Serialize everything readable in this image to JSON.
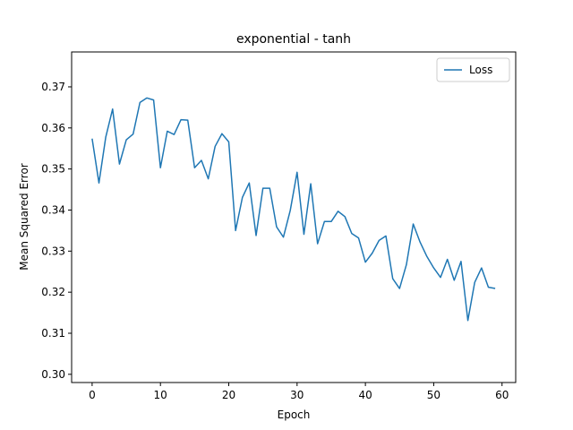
{
  "chart_data": {
    "type": "line",
    "title": "exponential - tanh",
    "xlabel": "Epoch",
    "ylabel": "Mean Squared Error",
    "xlim": [
      -3,
      62
    ],
    "ylim": [
      0.298,
      0.3785
    ],
    "xticks": [
      0,
      10,
      20,
      30,
      40,
      50,
      60
    ],
    "yticks": [
      0.3,
      0.31,
      0.32,
      0.33,
      0.34,
      0.35,
      0.36,
      0.37
    ],
    "ytick_labels": [
      "0.30",
      "0.31",
      "0.32",
      "0.33",
      "0.34",
      "0.35",
      "0.36",
      "0.37"
    ],
    "grid": false,
    "legend_position": "top-right",
    "series": [
      {
        "name": "Loss",
        "color": "#1f77b4",
        "x": [
          0,
          1,
          2,
          3,
          4,
          5,
          6,
          7,
          8,
          9,
          10,
          11,
          12,
          13,
          14,
          15,
          16,
          17,
          18,
          19,
          20,
          21,
          22,
          23,
          24,
          25,
          26,
          27,
          28,
          29,
          30,
          31,
          32,
          33,
          34,
          35,
          36,
          37,
          38,
          39,
          40,
          41,
          42,
          43,
          44,
          45,
          46,
          47,
          48,
          49,
          50,
          51,
          52,
          53,
          54,
          55,
          56,
          57,
          58,
          59
        ],
        "values": [
          0.3574,
          0.3466,
          0.3578,
          0.3646,
          0.3512,
          0.3571,
          0.3585,
          0.3662,
          0.3673,
          0.3668,
          0.3503,
          0.3592,
          0.3584,
          0.362,
          0.3619,
          0.3503,
          0.3521,
          0.3476,
          0.3555,
          0.3586,
          0.3566,
          0.335,
          0.3431,
          0.3466,
          0.3338,
          0.3453,
          0.3453,
          0.3359,
          0.3334,
          0.3399,
          0.3492,
          0.3341,
          0.3464,
          0.3318,
          0.3372,
          0.3372,
          0.3397,
          0.3384,
          0.3343,
          0.3332,
          0.3273,
          0.3295,
          0.3326,
          0.3337,
          0.3233,
          0.3209,
          0.3267,
          0.3366,
          0.3322,
          0.3287,
          0.3259,
          0.3236,
          0.328,
          0.3229,
          0.3275,
          0.3131,
          0.3224,
          0.3259,
          0.3212,
          0.3209
        ]
      }
    ]
  }
}
